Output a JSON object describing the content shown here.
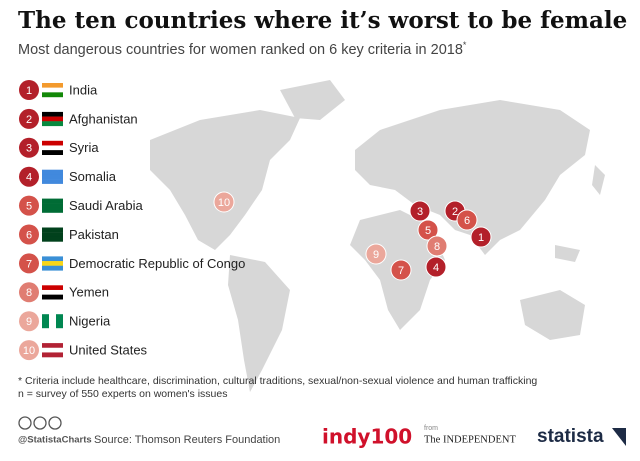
{
  "header": {
    "title": "The ten countries where it’s worst to be female",
    "subtitle": "Most dangerous countries for women ranked on 6 key criteria in 2018",
    "subtitle_mark": "*"
  },
  "countries": [
    {
      "rank": 1,
      "name": "India",
      "color": "#b3202a"
    },
    {
      "rank": 2,
      "name": "Afghanistan",
      "color": "#b3202a"
    },
    {
      "rank": 3,
      "name": "Syria",
      "color": "#b3202a"
    },
    {
      "rank": 4,
      "name": "Somalia",
      "color": "#b3202a"
    },
    {
      "rank": 5,
      "name": "Saudi Arabia",
      "color": "#d4524a"
    },
    {
      "rank": 6,
      "name": "Pakistan",
      "color": "#d4524a"
    },
    {
      "rank": 7,
      "name": "Democratic Republic of Congo",
      "color": "#d4524a"
    },
    {
      "rank": 8,
      "name": "Yemen",
      "color": "#e07d72"
    },
    {
      "rank": 9,
      "name": "Nigeria",
      "color": "#eba79b"
    },
    {
      "rank": 10,
      "name": "United States",
      "color": "#eba79b"
    }
  ],
  "footnote": [
    "* Criteria include healthcare, discrimination, cultural traditions, sexual/non-sexual violence and human trafficking",
    "n = survey of 550 experts on women's issues"
  ],
  "footer": {
    "handle": "@StatistaCharts",
    "source": "Source: Thomson Reuters Foundation",
    "brand1": "indy100",
    "from": "from",
    "brand2": "The INDEPENDENT",
    "brand3": "statista"
  }
}
